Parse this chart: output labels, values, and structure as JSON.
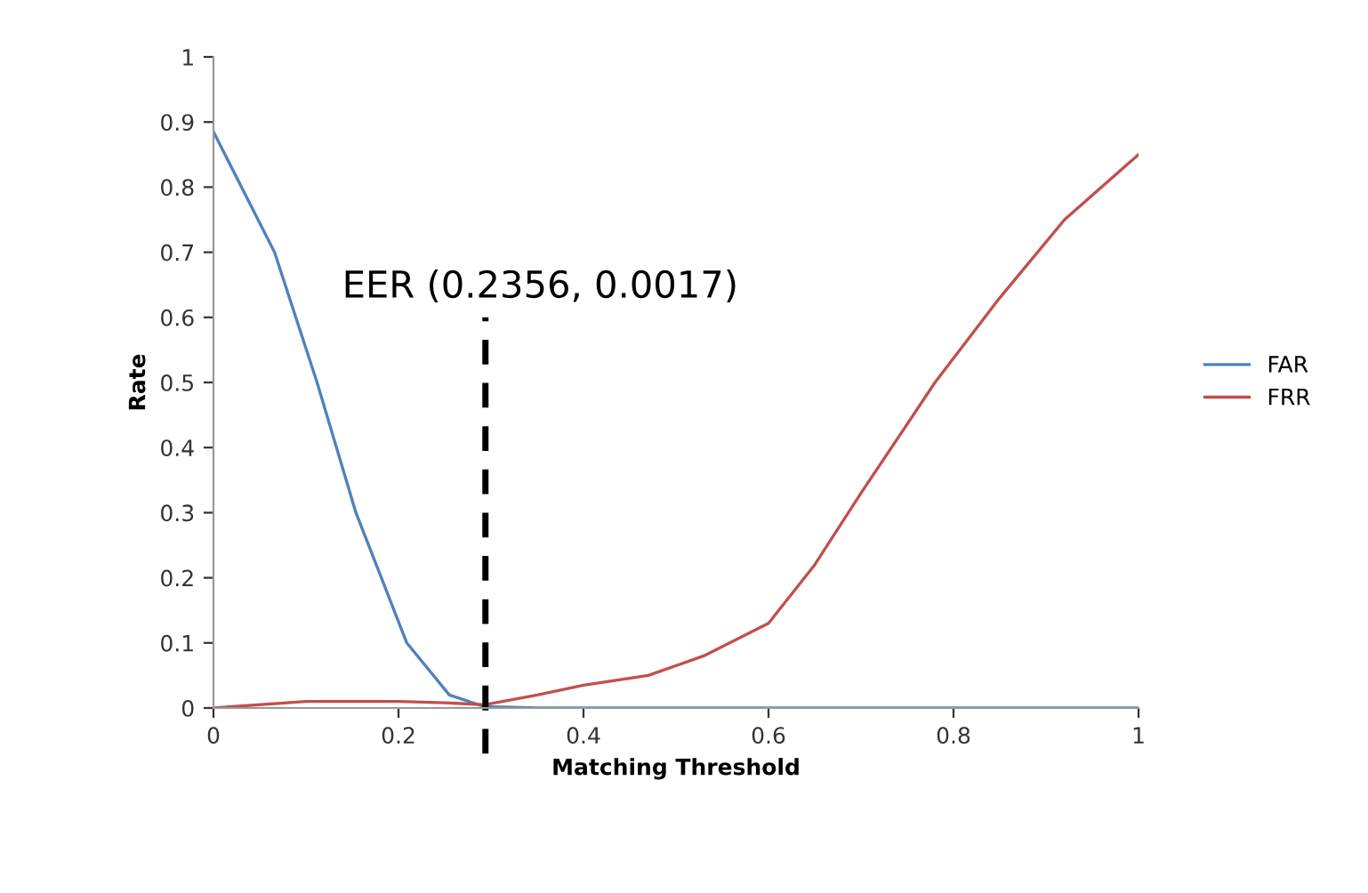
{
  "chart_data": {
    "type": "line",
    "xlabel": "Matching Threshold",
    "ylabel": "Rate",
    "series": [
      {
        "name": "FAR",
        "color": "#4f81bd",
        "x": [
          0,
          0.066,
          0.112,
          0.154,
          0.209,
          0.255,
          0.293,
          0.35,
          0.5,
          0.75,
          1
        ],
        "values": [
          0.885,
          0.7,
          0.5,
          0.3,
          0.1,
          0.02,
          0.002,
          0,
          0,
          0,
          0
        ]
      },
      {
        "name": "FRR",
        "color": "#c0504d",
        "x": [
          0,
          0.1,
          0.2,
          0.25,
          0.293,
          0.35,
          0.4,
          0.47,
          0.53,
          0.6,
          0.65,
          0.7,
          0.78,
          0.85,
          0.92,
          1
        ],
        "values": [
          0,
          0.01,
          0.01,
          0.008,
          0.005,
          0.02,
          0.035,
          0.05,
          0.08,
          0.13,
          0.22,
          0.33,
          0.5,
          0.63,
          0.75,
          0.85
        ]
      }
    ],
    "xlim": [
      0,
      1
    ],
    "xticks": [
      0,
      0.2,
      0.4,
      0.6,
      0.8,
      1
    ],
    "ylim": [
      0,
      1
    ],
    "yticks": [
      0,
      0.1,
      0.2,
      0.3,
      0.4,
      0.5,
      0.6,
      0.7,
      0.8,
      0.9,
      1
    ],
    "ref_lines": [
      {
        "axis": "x",
        "value": 0.294,
        "color": "#000000",
        "line_style": "dashed"
      }
    ],
    "annotations": [
      {
        "text": "EER (0.2356, 0.0017)",
        "x": 0.294,
        "y": 0.6
      }
    ],
    "grid": false,
    "legend": "right"
  }
}
